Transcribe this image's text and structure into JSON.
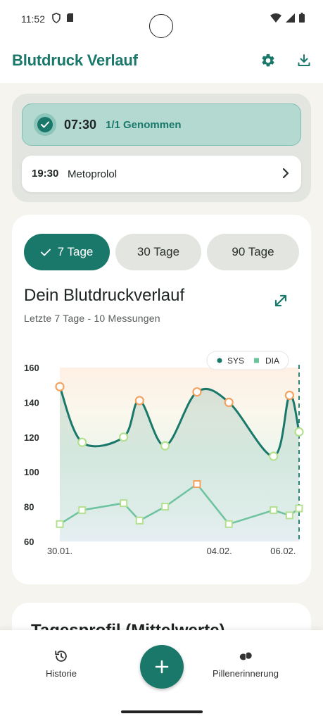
{
  "status_bar": {
    "time": "11:52"
  },
  "header": {
    "title": "Blutdruck Verlauf",
    "settings_icon": "gear-icon",
    "download_icon": "download-icon"
  },
  "reminders": {
    "taken": {
      "time": "07:30",
      "status": "1/1 Genommen"
    },
    "next": {
      "time": "19:30",
      "medication": "Metoprolol"
    }
  },
  "period_tabs": [
    {
      "label": "7 Tage",
      "active": true
    },
    {
      "label": "30 Tage",
      "active": false
    },
    {
      "label": "90 Tage",
      "active": false
    }
  ],
  "chart_header": {
    "title": "Dein Blutdruckverlauf",
    "subtitle": "Letzte 7 Tage - 10 Messungen"
  },
  "chart_data": {
    "type": "line",
    "ylim": [
      60,
      160
    ],
    "yticks": [
      160,
      140,
      120,
      100,
      80,
      60
    ],
    "xticks": [
      {
        "label": "30.01.",
        "x": 0
      },
      {
        "label": "04.02.",
        "x": 5
      },
      {
        "label": "06.02.",
        "x": 7
      }
    ],
    "legend": {
      "position": "top-right"
    },
    "series": [
      {
        "name": "SYS",
        "color": "#19786a",
        "x": [
          0,
          0.7,
          2.0,
          2.5,
          3.3,
          4.3,
          5.3,
          6.7,
          7.2,
          7.5
        ],
        "values": [
          149,
          117,
          120,
          141,
          115,
          146,
          140,
          109,
          144,
          123
        ]
      },
      {
        "name": "DIA",
        "color": "#6dc29f",
        "x": [
          0,
          0.7,
          2.0,
          2.5,
          3.3,
          4.3,
          5.3,
          6.7,
          7.2,
          7.5
        ],
        "values": [
          70,
          78,
          82,
          72,
          80,
          93,
          70,
          78,
          75,
          79
        ]
      }
    ]
  },
  "profile_card": {
    "title": "Tagesprofil (Mittelwerte)"
  },
  "bottom_nav": {
    "history": {
      "label": "Historie"
    },
    "reminder": {
      "label": "Pillenerinnerung"
    }
  }
}
